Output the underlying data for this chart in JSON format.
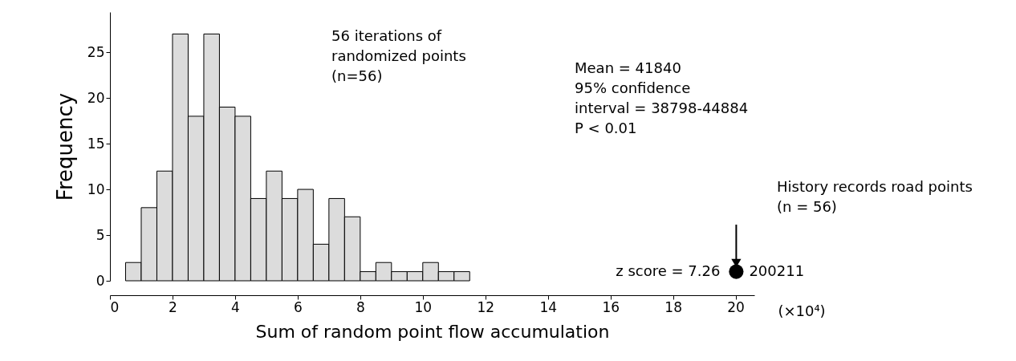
{
  "chart_data": {
    "type": "histogram",
    "xlabel": "Sum of random point  flow accumulation",
    "ylabel": "Frequency",
    "bins": [
      0.5,
      1,
      1.5,
      2,
      2.5,
      3,
      3.5,
      4,
      4.5,
      5,
      5.5,
      6,
      6.5,
      7,
      7.5,
      8,
      8.5,
      9,
      9.5,
      10,
      10.5,
      11,
      11.5
    ],
    "values": [
      2,
      8,
      12,
      27,
      18,
      27,
      19,
      18,
      9,
      12,
      9,
      10,
      4,
      9,
      7,
      1,
      2,
      1,
      1,
      2,
      1,
      1
    ],
    "color": "#dcdcdc",
    "series": [
      {
        "type": "scatter",
        "x": [
          20.02
        ],
        "values": [
          1
        ],
        "color": "#000000",
        "marker": "circle"
      }
    ],
    "xlim": [
      0,
      20.6
    ],
    "xticks": [
      0,
      2,
      4,
      6,
      8,
      10,
      12,
      14,
      16,
      18,
      20
    ],
    "ylim": [
      0,
      29.4
    ],
    "yticks": [
      0,
      5,
      10,
      15,
      20,
      25
    ],
    "grid": false,
    "annotations": [
      "56 iterations of\nrandomized points\n(n=56)",
      "Mean = 41840\n95% confidence\ninterval = 38798-44884\nP < 0.01",
      "History records road points\n(n = 56)",
      {
        "text": "z score = 7.26",
        "x": 20.02,
        "y": 1
      },
      {
        "text": "200211",
        "x": 20.02,
        "y": 1
      },
      "(×10⁴)"
    ]
  }
}
